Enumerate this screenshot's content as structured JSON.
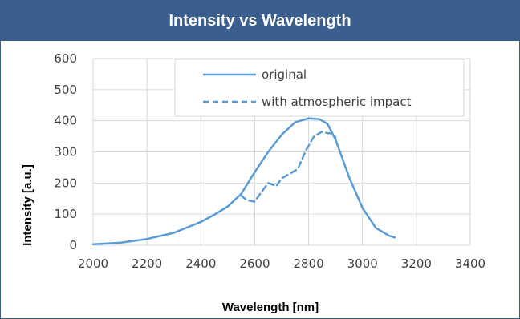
{
  "chart_data": {
    "type": "line",
    "title": "Intensity vs Wavelength",
    "xlabel": "Wavelength [nm]",
    "ylabel": "Intensity [a.u.]",
    "xlim": [
      2000,
      3400
    ],
    "ylim": [
      0,
      600
    ],
    "xticks": [
      "2000",
      "2200",
      "2400",
      "2600",
      "2800",
      "3000",
      "3200",
      "3400"
    ],
    "yticks": [
      "0",
      "100",
      "200",
      "300",
      "400",
      "500",
      "600"
    ],
    "grid": true,
    "legend_position": "top-right",
    "line_color": "#5b9bd5",
    "series": [
      {
        "name": "original",
        "style": "solid",
        "x": [
          2000,
          2100,
          2200,
          2300,
          2400,
          2450,
          2500,
          2550,
          2600,
          2650,
          2700,
          2750,
          2800,
          2840,
          2870,
          2900,
          2950,
          3000,
          3050,
          3100,
          3120
        ],
        "y": [
          3,
          8,
          20,
          40,
          75,
          98,
          125,
          165,
          235,
          300,
          355,
          395,
          408,
          405,
          390,
          340,
          220,
          120,
          55,
          30,
          25
        ]
      },
      {
        "name": "with atmospheric impact",
        "style": "dashed",
        "x": [
          2550,
          2570,
          2600,
          2620,
          2650,
          2680,
          2700,
          2730,
          2760,
          2790,
          2820,
          2850,
          2870,
          2890,
          2900
        ],
        "y": [
          160,
          145,
          140,
          165,
          200,
          190,
          215,
          230,
          245,
          305,
          350,
          365,
          360,
          360,
          345
        ]
      }
    ]
  }
}
